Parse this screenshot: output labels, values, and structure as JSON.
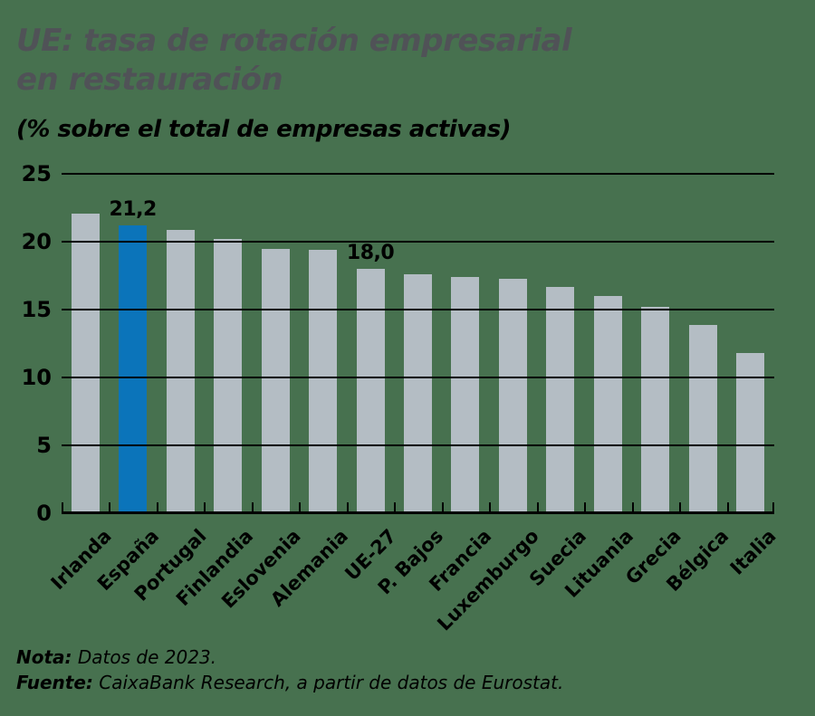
{
  "header": {
    "title_line1": "UE: tasa de rotación empresarial",
    "title_line2": "en restauración",
    "subtitle": "(% sobre el total de empresas activas)"
  },
  "chart_data": {
    "type": "bar",
    "title": "UE: tasa de rotación empresarial en restauración",
    "subtitle": "(% sobre el total de empresas activas)",
    "categories": [
      "Irlanda",
      "España",
      "Portugal",
      "Finlandia",
      "Eslovenia",
      "Alemania",
      "UE-27",
      "P. Bajos",
      "Francia",
      "Luxemburgo",
      "Suecia",
      "Lituania",
      "Grecia",
      "Bélgica",
      "Italia"
    ],
    "values": [
      22.1,
      21.2,
      20.9,
      20.2,
      19.5,
      19.4,
      18.0,
      17.6,
      17.4,
      17.3,
      16.7,
      16.0,
      15.2,
      13.9,
      11.8
    ],
    "highlighted_category": "España",
    "data_labels": [
      {
        "category": "España",
        "text": "21,2"
      },
      {
        "category": "UE-27",
        "text": "18,0"
      }
    ],
    "ylim": [
      0,
      25
    ],
    "ytick_step": 5,
    "yticks": [
      "0",
      "5",
      "10",
      "15",
      "20",
      "25"
    ],
    "grid": true,
    "legend": "none",
    "bar_color": "#b4bdc4",
    "highlight_color": "#0b74ba"
  },
  "footer": {
    "note_label": "Nota:",
    "note_text": " Datos de 2023.",
    "source_label": "Fuente:",
    "source_text": " CaixaBank Research, a partir de datos de Eurostat."
  },
  "colors": {
    "background": "#47714f",
    "title": "#505257",
    "text": "#000000",
    "axis": "#000000"
  }
}
